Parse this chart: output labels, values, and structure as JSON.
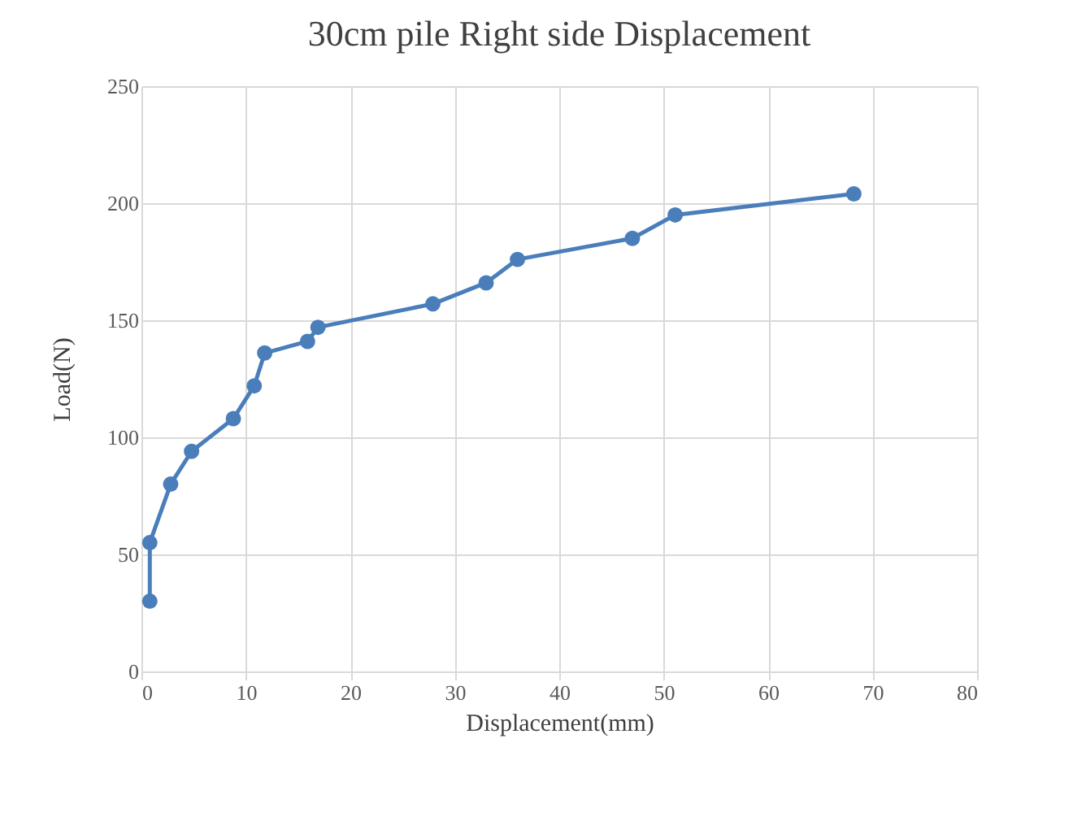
{
  "chart_data": {
    "type": "line",
    "title": "30cm pile Right side Displacement",
    "xlabel": "Displacement(mm)",
    "ylabel": "Load(N)",
    "series": [
      {
        "color": "#4a7ebb",
        "x": [
          0.8,
          0.8,
          2.8,
          4.8,
          8.8,
          10.8,
          11.8,
          15.9,
          16.9,
          27.9,
          33,
          36,
          47,
          51.1,
          68.2
        ],
        "values": [
          30,
          55,
          80,
          94,
          108,
          122,
          136,
          141,
          147,
          157,
          166,
          176,
          185,
          195,
          204
        ]
      }
    ],
    "xlim": [
      0,
      80
    ],
    "xticks": [
      0,
      10,
      20,
      30,
      40,
      50,
      60,
      70,
      80
    ],
    "ylim": [
      0,
      250
    ],
    "yticks": [
      0,
      50,
      100,
      150,
      200,
      250
    ],
    "grid": true,
    "marker": "circle",
    "line_style": "solid"
  }
}
